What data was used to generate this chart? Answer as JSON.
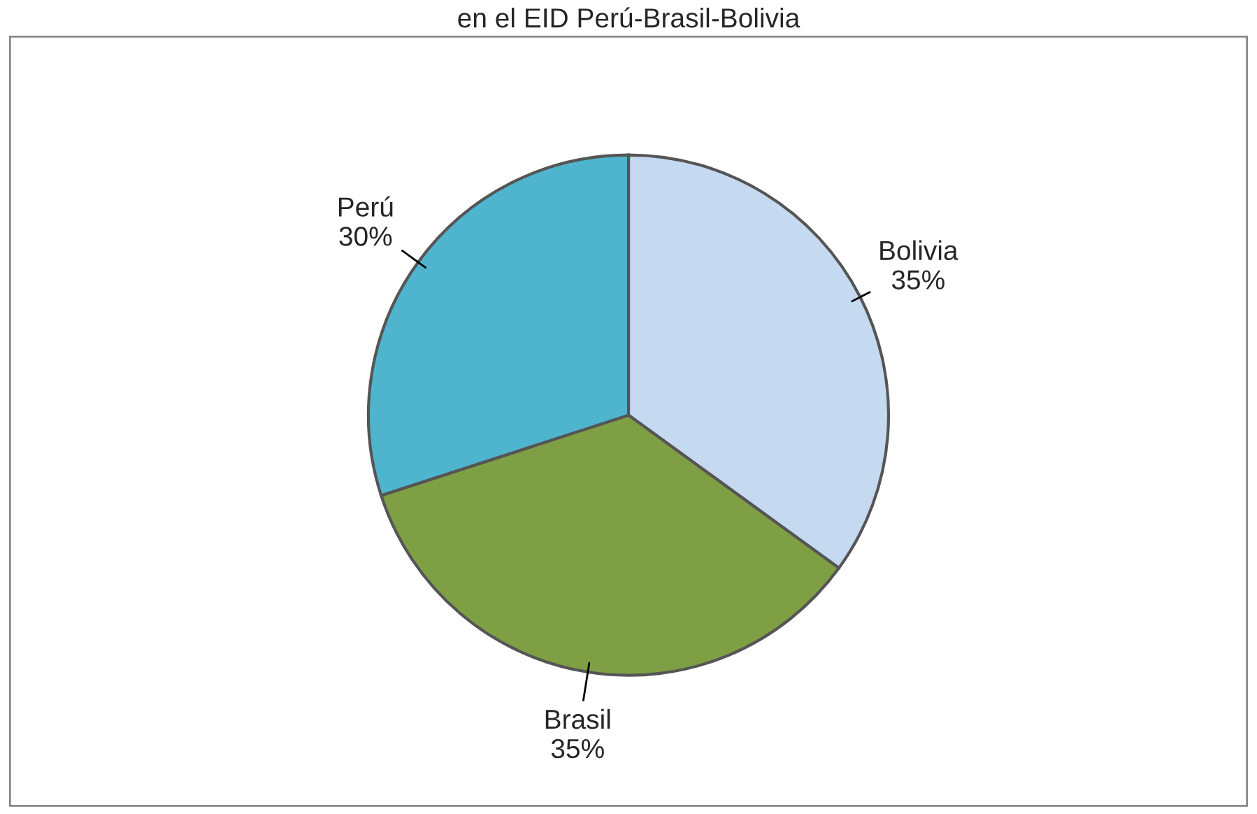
{
  "chart_data": {
    "type": "pie",
    "title": "en el EID Perú-Brasil-Bolivia",
    "categories": [
      "Bolivia",
      "Brasil",
      "Perú"
    ],
    "values": [
      35,
      35,
      30
    ],
    "colors": [
      "#c5d9f1",
      "#7f9f45",
      "#4fb5cf"
    ],
    "value_labels": [
      "35%",
      "35%",
      "30%"
    ],
    "legend": false
  }
}
